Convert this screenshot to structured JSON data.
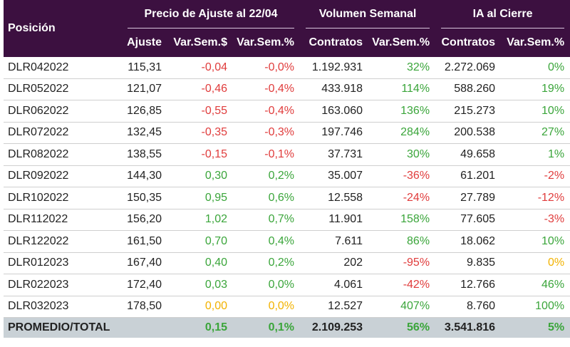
{
  "headers": {
    "posicion": "Posición",
    "group_precio": "Precio de Ajuste al 22/04",
    "group_volumen": "Volumen Semanal",
    "group_ia": "IA al Cierre",
    "ajuste": "Ajuste",
    "var_sem_abs": "Var.Sem.$",
    "var_sem_pct": "Var.Sem.%",
    "contratos": "Contratos",
    "vol_var": "Var.Sem.%",
    "ia_contratos": "Contratos",
    "ia_var": "Var.Sem.%"
  },
  "colors": {
    "header_bg": "#3c1040",
    "negative": "#e03c3c",
    "positive": "#3aa53a",
    "zero": "#f2b200",
    "total_bg": "#c9d1d6"
  },
  "rows": [
    {
      "pos": "DLR042022",
      "ajuste": "115,31",
      "var_abs": "-0,04",
      "var_pct": "-0,0%",
      "contratos": "1.192.931",
      "vol_var": "32%",
      "ia": "2.272.069",
      "ia_var": "0%",
      "c": [
        "neg",
        "neg",
        "pos-v",
        "pos-v"
      ]
    },
    {
      "pos": "DLR052022",
      "ajuste": "121,07",
      "var_abs": "-0,46",
      "var_pct": "-0,4%",
      "contratos": "433.918",
      "vol_var": "114%",
      "ia": "588.260",
      "ia_var": "19%",
      "c": [
        "neg",
        "neg",
        "pos-v",
        "pos-v"
      ]
    },
    {
      "pos": "DLR062022",
      "ajuste": "126,85",
      "var_abs": "-0,55",
      "var_pct": "-0,4%",
      "contratos": "163.060",
      "vol_var": "136%",
      "ia": "215.273",
      "ia_var": "10%",
      "c": [
        "neg",
        "neg",
        "pos-v",
        "pos-v"
      ]
    },
    {
      "pos": "DLR072022",
      "ajuste": "132,45",
      "var_abs": "-0,35",
      "var_pct": "-0,3%",
      "contratos": "197.746",
      "vol_var": "284%",
      "ia": "200.538",
      "ia_var": "27%",
      "c": [
        "neg",
        "neg",
        "pos-v",
        "pos-v"
      ]
    },
    {
      "pos": "DLR082022",
      "ajuste": "138,55",
      "var_abs": "-0,15",
      "var_pct": "-0,1%",
      "contratos": "37.731",
      "vol_var": "30%",
      "ia": "49.658",
      "ia_var": "1%",
      "c": [
        "neg",
        "neg",
        "pos-v",
        "pos-v"
      ]
    },
    {
      "pos": "DLR092022",
      "ajuste": "144,30",
      "var_abs": "0,30",
      "var_pct": "0,2%",
      "contratos": "35.007",
      "vol_var": "-36%",
      "ia": "61.201",
      "ia_var": "-2%",
      "c": [
        "pos-v",
        "pos-v",
        "neg",
        "neg"
      ]
    },
    {
      "pos": "DLR102022",
      "ajuste": "150,35",
      "var_abs": "0,95",
      "var_pct": "0,6%",
      "contratos": "12.558",
      "vol_var": "-24%",
      "ia": "27.789",
      "ia_var": "-12%",
      "c": [
        "pos-v",
        "pos-v",
        "neg",
        "neg"
      ]
    },
    {
      "pos": "DLR112022",
      "ajuste": "156,20",
      "var_abs": "1,02",
      "var_pct": "0,7%",
      "contratos": "11.901",
      "vol_var": "158%",
      "ia": "77.605",
      "ia_var": "-3%",
      "c": [
        "pos-v",
        "pos-v",
        "pos-v",
        "neg"
      ]
    },
    {
      "pos": "DLR122022",
      "ajuste": "161,50",
      "var_abs": "0,70",
      "var_pct": "0,4%",
      "contratos": "7.611",
      "vol_var": "86%",
      "ia": "18.062",
      "ia_var": "10%",
      "c": [
        "pos-v",
        "pos-v",
        "pos-v",
        "pos-v"
      ]
    },
    {
      "pos": "DLR012023",
      "ajuste": "167,40",
      "var_abs": "0,40",
      "var_pct": "0,2%",
      "contratos": "202",
      "vol_var": "-95%",
      "ia": "9.835",
      "ia_var": "0%",
      "c": [
        "pos-v",
        "pos-v",
        "neg",
        "zero"
      ]
    },
    {
      "pos": "DLR022023",
      "ajuste": "172,40",
      "var_abs": "0,03",
      "var_pct": "0,0%",
      "contratos": "4.061",
      "vol_var": "-42%",
      "ia": "12.766",
      "ia_var": "46%",
      "c": [
        "pos-v",
        "pos-v",
        "neg",
        "pos-v"
      ]
    },
    {
      "pos": "DLR032023",
      "ajuste": "178,50",
      "var_abs": "0,00",
      "var_pct": "0,0%",
      "contratos": "12.527",
      "vol_var": "407%",
      "ia": "8.760",
      "ia_var": "100%",
      "c": [
        "zero",
        "zero",
        "pos-v",
        "pos-v"
      ]
    }
  ],
  "total": {
    "pos": "PROMEDIO/TOTAL",
    "ajuste": "",
    "var_abs": "0,15",
    "var_pct": "0,1%",
    "contratos": "2.109.253",
    "vol_var": "56%",
    "ia": "3.541.816",
    "ia_var": "5%",
    "c": [
      "pos-v",
      "pos-v",
      "pos-v",
      "pos-v"
    ]
  }
}
